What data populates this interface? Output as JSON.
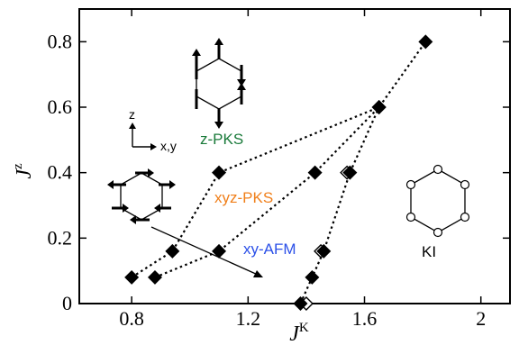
{
  "chart_data": {
    "type": "scatter",
    "xlabel": "J",
    "xlabel_sup": "K",
    "ylabel": "J",
    "ylabel_sup": "z",
    "xlim": [
      0.62,
      2.1
    ],
    "ylim": [
      0,
      0.9
    ],
    "xticks": [
      0.8,
      1.2,
      1.6,
      2
    ],
    "xtick_labels": [
      "0.8",
      "1.2",
      "1.6",
      "2"
    ],
    "yticks": [
      0,
      0.2,
      0.4,
      0.6,
      0.8
    ],
    "ytick_labels": [
      "0",
      "0.2",
      "0.4",
      "0.6",
      "0.8"
    ],
    "grid": false,
    "series": [
      {
        "points": [
          [
            0.8,
            0.08
          ],
          [
            0.94,
            0.16
          ],
          [
            1.1,
            0.4
          ],
          [
            1.65,
            0.6
          ],
          [
            1.81,
            0.8
          ]
        ]
      },
      {
        "points": [
          [
            0.88,
            0.08
          ],
          [
            1.1,
            0.16
          ],
          [
            1.43,
            0.4
          ],
          [
            1.65,
            0.6
          ]
        ]
      },
      {
        "points": [
          [
            1.38,
            0.0
          ],
          [
            1.42,
            0.08
          ],
          [
            1.46,
            0.16
          ],
          [
            1.55,
            0.4
          ],
          [
            1.65,
            0.6
          ]
        ]
      }
    ],
    "open_points": [
      [
        1.4,
        0.0
      ],
      [
        1.45,
        0.16
      ],
      [
        1.54,
        0.4
      ]
    ],
    "annotations": {
      "z_pks": {
        "text": "z-PKS",
        "color": "#1a7a3a"
      },
      "xyz_pks": {
        "text": "xyz-PKS",
        "color": "#f07f1a"
      },
      "xy_afm": {
        "text": "xy-AFM",
        "color": "#2b50e8"
      },
      "ki": {
        "text": "KI",
        "color": "#000000"
      },
      "axes_z": "z",
      "axes_xy": "x,y"
    }
  }
}
